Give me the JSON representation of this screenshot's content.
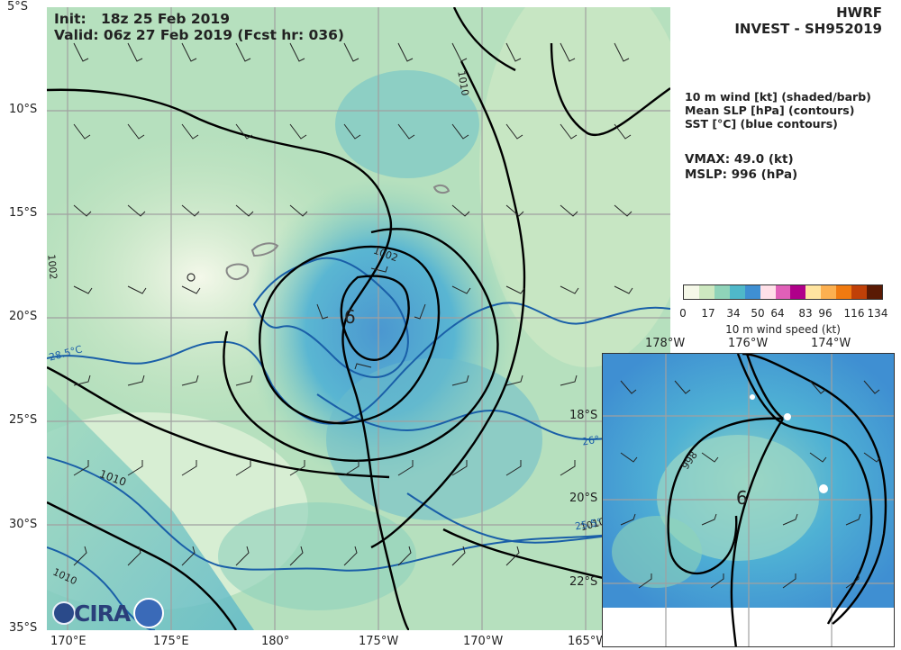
{
  "header": {
    "model": "HWRF",
    "storm": "INVEST - SH952019",
    "init_label": "Init:",
    "init_value": "18z 25 Feb 2019",
    "valid_line": "Valid: 06z 27 Feb 2019 (Fcst hr: 036)"
  },
  "legend_text": {
    "line1": "10 m wind [kt] (shaded/barb)",
    "line2": "Mean SLP [hPa] (contours)",
    "line3": "SST [°C] (blue contours)"
  },
  "stats": {
    "vmax": "VMAX:  49.0 (kt)",
    "mslp": "MSLP:  996 (hPa)"
  },
  "colorbar": {
    "ticks": [
      "0",
      "17",
      "34",
      "50",
      "64",
      "83",
      "96",
      "116",
      "134"
    ],
    "label": "10 m wind speed (kt)",
    "colors": [
      "#f5f8e8",
      "#cde8c0",
      "#8fd3b9",
      "#4fb8c9",
      "#3f8fd2",
      "#ffe0e8",
      "#e060b8",
      "#b0008a",
      "#ffe4a0",
      "#fcb050",
      "#f07a10",
      "#c04008",
      "#5a1a04"
    ]
  },
  "main_map": {
    "lat_labels": [
      "5°S",
      "10°S",
      "15°S",
      "20°S",
      "25°S",
      "30°S",
      "35°S"
    ],
    "lon_labels": [
      "170°E",
      "175°E",
      "180°",
      "175°W",
      "170°W",
      "165°W"
    ],
    "contour_labels": [
      "1010",
      "1002",
      "1002",
      "1010",
      "1010",
      "1010"
    ],
    "sst_labels": [
      "28.5°C",
      "26°",
      "25.5°"
    ],
    "center_symbol": "6"
  },
  "inset_map": {
    "lon_labels": [
      "178°W",
      "176°W",
      "174°W"
    ],
    "lat_labels": [
      "18°S",
      "20°S",
      "22°S"
    ],
    "contour_label": "998",
    "center_symbol": "6"
  },
  "logo": {
    "text": "CIRA"
  }
}
